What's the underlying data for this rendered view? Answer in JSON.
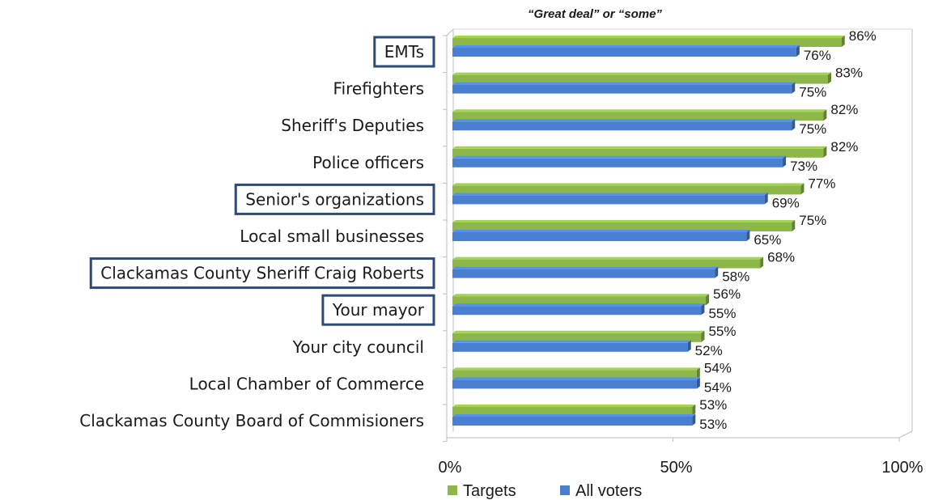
{
  "chart_data": {
    "type": "bar",
    "orientation": "horizontal",
    "subtitle": "“Great deal” or “some”",
    "categories": [
      "EMTs",
      "Firefighters",
      "Sheriff's Deputies",
      "Police officers",
      "Senior's organizations",
      "Local small businesses",
      "Clackamas County Sheriff Craig Roberts",
      "Your mayor",
      "Your city council",
      "Local Chamber of Commerce",
      "Clackamas County Board of Commisioners"
    ],
    "highlighted": [
      true,
      false,
      false,
      false,
      true,
      false,
      true,
      true,
      false,
      false,
      false
    ],
    "series": [
      {
        "name": "Targets",
        "color": "#8DB849",
        "values": [
          86,
          83,
          82,
          82,
          77,
          75,
          68,
          56,
          55,
          54,
          53
        ],
        "labels": [
          "86%",
          "83%",
          "82%",
          "82%",
          "77%",
          "75%",
          "68%",
          "56%",
          "55%",
          "54%",
          "53%"
        ]
      },
      {
        "name": "All voters",
        "color": "#4A7FD0",
        "values": [
          76,
          75,
          75,
          73,
          69,
          65,
          58,
          55,
          52,
          54,
          53
        ],
        "labels": [
          "76%",
          "75%",
          "75%",
          "73%",
          "69%",
          "65%",
          "58%",
          "55%",
          "52%",
          "54%",
          "53%"
        ]
      }
    ],
    "xlim": [
      0,
      100
    ],
    "xticks": [
      0,
      50,
      100
    ],
    "xtick_labels": [
      "0%",
      "50%",
      "100%"
    ],
    "grid": false,
    "legend_position": "bottom-center",
    "highlight_box_color": "#2E4A78"
  }
}
